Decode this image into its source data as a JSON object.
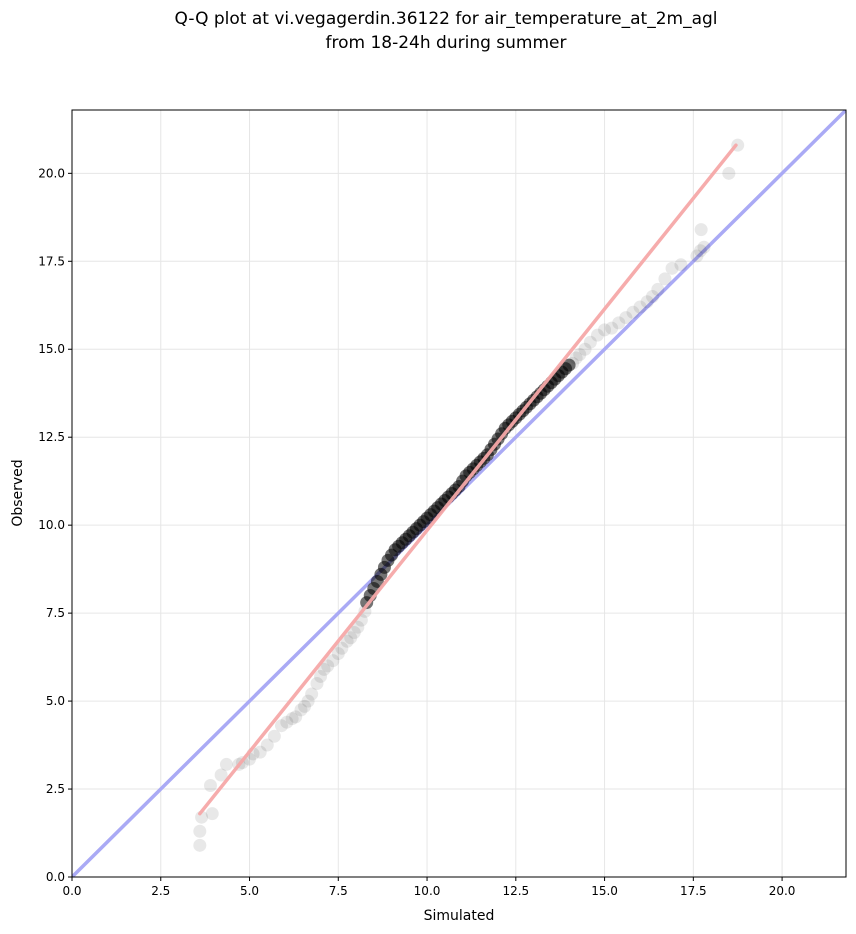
{
  "chart_data": {
    "type": "scatter",
    "title": [
      "Q-Q plot at vi.vegagerdin.36122 for air_temperature_at_2m_agl",
      "from 18-24h during summer"
    ],
    "xlabel": "Simulated",
    "ylabel": "Observed",
    "xlim": [
      0,
      21.8
    ],
    "ylim": [
      0,
      21.8
    ],
    "xticks": [
      0.0,
      2.5,
      5.0,
      7.5,
      10.0,
      12.5,
      15.0,
      17.5,
      20.0
    ],
    "xtick_labels": [
      "0.0",
      "2.5",
      "5.0",
      "7.5",
      "10.0",
      "12.5",
      "15.0",
      "17.5",
      "20.0"
    ],
    "yticks": [
      0.0,
      2.5,
      5.0,
      7.5,
      10.0,
      12.5,
      15.0,
      17.5,
      20.0
    ],
    "ytick_labels": [
      "0.0",
      "2.5",
      "5.0",
      "7.5",
      "10.0",
      "12.5",
      "15.0",
      "17.5",
      "20.0"
    ],
    "grid": true,
    "reference_line": {
      "x": [
        0,
        21.8
      ],
      "y": [
        0,
        21.8
      ],
      "color": "#aaaaf5"
    },
    "fit_line": {
      "x": [
        3.6,
        18.7
      ],
      "y": [
        1.8,
        20.8
      ],
      "color": "#f5a8a8"
    },
    "points_color": "#000000",
    "points_outer": {
      "x": [
        3.6,
        3.6,
        3.65,
        3.95,
        3.9,
        4.2,
        4.35,
        4.7,
        4.8,
        5.0,
        5.1,
        5.3,
        5.5,
        5.7,
        5.9,
        6.05,
        6.2,
        6.3,
        6.45,
        6.55,
        6.65,
        6.75,
        6.9,
        7.0,
        7.1,
        7.2,
        7.35,
        7.5,
        7.6,
        7.75,
        7.85,
        7.95,
        8.05,
        8.15,
        8.25,
        14.1,
        14.2,
        14.3,
        14.45,
        14.6,
        14.8,
        15.0,
        15.2,
        15.4,
        15.6,
        15.8,
        16.0,
        16.2,
        16.35,
        16.5,
        16.7,
        16.9,
        17.15,
        17.6,
        17.7,
        17.72,
        17.8,
        18.5,
        18.75
      ],
      "y": [
        0.9,
        1.3,
        1.7,
        1.8,
        2.6,
        2.9,
        3.2,
        3.2,
        3.25,
        3.35,
        3.5,
        3.55,
        3.75,
        4.0,
        4.3,
        4.4,
        4.5,
        4.55,
        4.75,
        4.85,
        5.0,
        5.2,
        5.5,
        5.7,
        5.9,
        6.0,
        6.15,
        6.35,
        6.5,
        6.7,
        6.8,
        6.95,
        7.1,
        7.3,
        7.55,
        14.6,
        14.75,
        14.85,
        15.0,
        15.2,
        15.4,
        15.55,
        15.6,
        15.75,
        15.9,
        16.05,
        16.2,
        16.35,
        16.5,
        16.7,
        17.0,
        17.3,
        17.4,
        17.65,
        17.8,
        18.4,
        17.9,
        20.0,
        20.8
      ]
    },
    "points_core": {
      "x": [
        8.3,
        8.4,
        8.5,
        8.6,
        8.7,
        8.8,
        8.9,
        9.0,
        9.1,
        9.2,
        9.3,
        9.4,
        9.5,
        9.6,
        9.7,
        9.8,
        9.9,
        10.0,
        10.1,
        10.2,
        10.3,
        10.4,
        10.5,
        10.6,
        10.7,
        10.8,
        10.9,
        11.0,
        11.1,
        11.2,
        11.3,
        11.4,
        11.5,
        11.6,
        11.7,
        11.8,
        11.9,
        12.0,
        12.1,
        12.2,
        12.3,
        12.4,
        12.5,
        12.6,
        12.7,
        12.8,
        12.9,
        13.0,
        13.1,
        13.2,
        13.3,
        13.4,
        13.5,
        13.6,
        13.7,
        13.8,
        13.9,
        14.0
      ],
      "y": [
        7.8,
        8.0,
        8.2,
        8.4,
        8.6,
        8.8,
        9.0,
        9.15,
        9.3,
        9.4,
        9.5,
        9.6,
        9.7,
        9.8,
        9.9,
        10.0,
        10.1,
        10.2,
        10.3,
        10.4,
        10.5,
        10.6,
        10.7,
        10.8,
        10.9,
        11.0,
        11.1,
        11.25,
        11.4,
        11.5,
        11.6,
        11.7,
        11.8,
        11.9,
        12.0,
        12.15,
        12.3,
        12.45,
        12.6,
        12.75,
        12.85,
        12.95,
        13.05,
        13.15,
        13.25,
        13.35,
        13.45,
        13.55,
        13.65,
        13.75,
        13.85,
        13.95,
        14.05,
        14.15,
        14.25,
        14.35,
        14.45,
        14.55
      ]
    }
  }
}
